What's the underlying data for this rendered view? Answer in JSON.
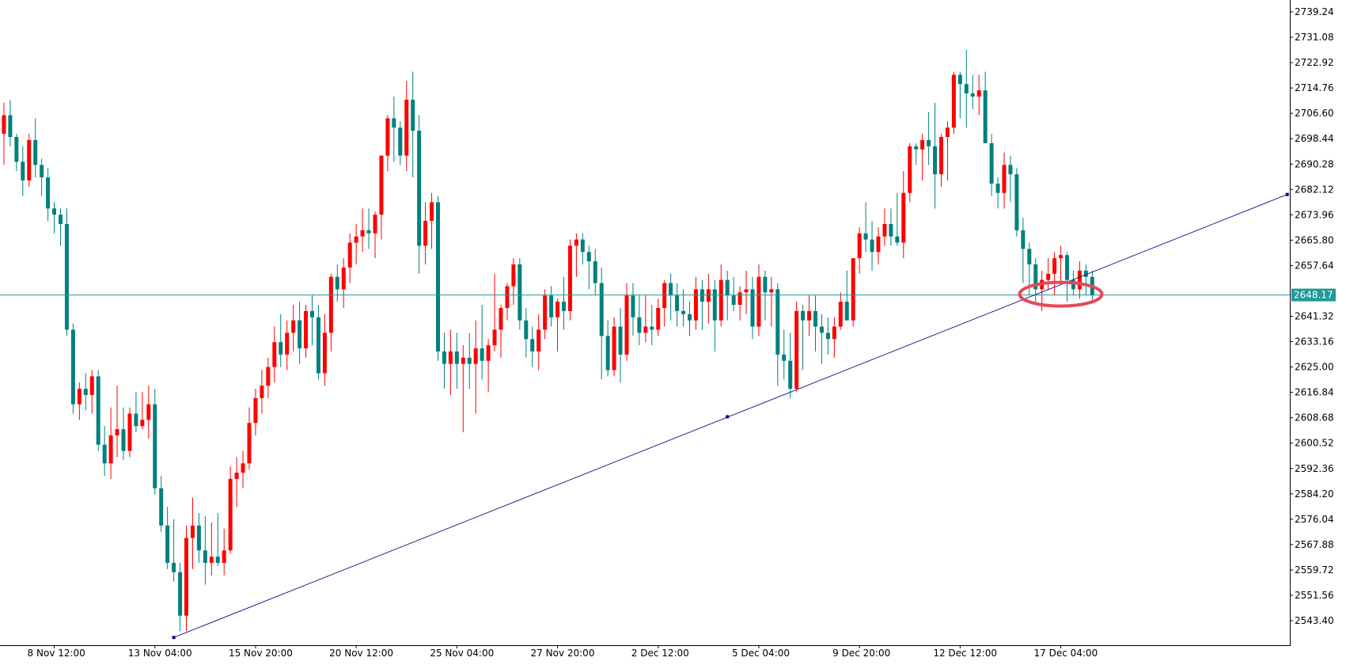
{
  "chart_data": {
    "type": "candlestick",
    "title": "",
    "xlabel": "",
    "ylabel": "",
    "ylim": [
      2535.0,
      2743.0
    ],
    "y_ticks": [
      2739.24,
      2731.08,
      2722.92,
      2714.76,
      2706.6,
      2698.44,
      2690.28,
      2682.12,
      2673.96,
      2665.8,
      2657.64,
      2641.32,
      2633.16,
      2625.0,
      2616.84,
      2608.68,
      2600.52,
      2592.36,
      2584.2,
      2576.04,
      2567.88,
      2559.72,
      2551.56,
      2543.4
    ],
    "x_labels": [
      {
        "label": "8 Nov 12:00",
        "index": 9
      },
      {
        "label": "13 Nov 04:00",
        "index": 25
      },
      {
        "label": "15 Nov 20:00",
        "index": 41
      },
      {
        "label": "20 Nov 12:00",
        "index": 57
      },
      {
        "label": "25 Nov 04:00",
        "index": 73
      },
      {
        "label": "27 Nov 20:00",
        "index": 89
      },
      {
        "label": "2 Dec 12:00",
        "index": 105
      },
      {
        "label": "5 Dec 04:00",
        "index": 121
      },
      {
        "label": "9 Dec 20:00",
        "index": 137
      },
      {
        "label": "12 Dec 12:00",
        "index": 153
      },
      {
        "label": "17 Dec 04:00",
        "index": 169
      }
    ],
    "current_price": "2648.17",
    "trendline": {
      "start": {
        "index": 28,
        "value": 2538.0
      },
      "mid": {
        "index": 116,
        "value": 2609.0
      },
      "end": {
        "index": 205,
        "value": 2680.5
      }
    },
    "candles": [
      [
        2697,
        2711,
        2683,
        2688
      ],
      [
        2700,
        2710,
        2690,
        2706
      ],
      [
        2706,
        2711,
        2696,
        2699
      ],
      [
        2699,
        2700,
        2688,
        2691
      ],
      [
        2691,
        2696,
        2680,
        2685
      ],
      [
        2685,
        2700,
        2683,
        2698
      ],
      [
        2698,
        2705,
        2686,
        2690
      ],
      [
        2690,
        2692,
        2680,
        2686
      ],
      [
        2686,
        2689,
        2672,
        2676
      ],
      [
        2676,
        2678,
        2668,
        2674
      ],
      [
        2674,
        2676,
        2664,
        2671
      ],
      [
        2671,
        2676,
        2635,
        2637
      ],
      [
        2637,
        2639,
        2610,
        2613
      ],
      [
        2613,
        2620,
        2608,
        2618
      ],
      [
        2618,
        2623,
        2611,
        2616
      ],
      [
        2616,
        2624,
        2610,
        2622
      ],
      [
        2622,
        2624,
        2598,
        2600
      ],
      [
        2600,
        2606,
        2590,
        2594
      ],
      [
        2594,
        2612,
        2589,
        2603
      ],
      [
        2603,
        2619,
        2596,
        2605
      ],
      [
        2605,
        2612,
        2595,
        2598
      ],
      [
        2598,
        2612,
        2596,
        2610
      ],
      [
        2610,
        2617,
        2604,
        2606
      ],
      [
        2606,
        2617,
        2605,
        2608
      ],
      [
        2608,
        2619,
        2602,
        2613
      ],
      [
        2613,
        2618,
        2584,
        2586
      ],
      [
        2586,
        2590,
        2572,
        2574
      ],
      [
        2574,
        2580,
        2560,
        2562
      ],
      [
        2562,
        2576,
        2556,
        2559
      ],
      [
        2559,
        2562,
        2540,
        2545
      ],
      [
        2545,
        2574,
        2540,
        2570
      ],
      [
        2570,
        2583,
        2560,
        2574
      ],
      [
        2574,
        2578,
        2562,
        2566
      ],
      [
        2566,
        2577,
        2555,
        2562
      ],
      [
        2562,
        2575,
        2558,
        2564
      ],
      [
        2564,
        2578,
        2561,
        2562
      ],
      [
        2562,
        2573,
        2558,
        2566
      ],
      [
        2566,
        2593,
        2565,
        2589
      ],
      [
        2589,
        2596,
        2580,
        2591
      ],
      [
        2591,
        2598,
        2586,
        2594
      ],
      [
        2594,
        2612,
        2592,
        2607
      ],
      [
        2607,
        2618,
        2603,
        2615
      ],
      [
        2615,
        2624,
        2610,
        2619
      ],
      [
        2619,
        2628,
        2615,
        2625
      ],
      [
        2625,
        2638,
        2620,
        2633
      ],
      [
        2633,
        2642,
        2625,
        2629
      ],
      [
        2629,
        2640,
        2624,
        2636
      ],
      [
        2636,
        2645,
        2630,
        2640
      ],
      [
        2640,
        2646,
        2626,
        2631
      ],
      [
        2631,
        2645,
        2628,
        2643
      ],
      [
        2643,
        2648,
        2632,
        2641
      ],
      [
        2641,
        2645,
        2621,
        2623
      ],
      [
        2623,
        2642,
        2619,
        2636
      ],
      [
        2636,
        2655,
        2630,
        2654
      ],
      [
        2654,
        2658,
        2646,
        2650
      ],
      [
        2650,
        2660,
        2644,
        2657
      ],
      [
        2657,
        2668,
        2652,
        2665
      ],
      [
        2665,
        2671,
        2658,
        2667
      ],
      [
        2667,
        2676,
        2662,
        2669
      ],
      [
        2669,
        2676,
        2663,
        2668
      ],
      [
        2668,
        2675,
        2660,
        2674
      ],
      [
        2674,
        2693,
        2666,
        2693
      ],
      [
        2693,
        2706,
        2688,
        2705
      ],
      [
        2705,
        2712,
        2691,
        2702
      ],
      [
        2702,
        2704,
        2690,
        2693
      ],
      [
        2693,
        2717,
        2688,
        2711
      ],
      [
        2711,
        2720,
        2686,
        2701
      ],
      [
        2701,
        2706,
        2655,
        2664
      ],
      [
        2664,
        2678,
        2658,
        2672
      ],
      [
        2672,
        2681,
        2663,
        2678
      ],
      [
        2678,
        2680,
        2627,
        2630
      ],
      [
        2630,
        2636,
        2618,
        2626
      ],
      [
        2626,
        2637,
        2616,
        2630
      ],
      [
        2630,
        2636,
        2618,
        2626
      ],
      [
        2626,
        2632,
        2604,
        2628
      ],
      [
        2628,
        2636,
        2618,
        2626
      ],
      [
        2626,
        2640,
        2610,
        2631
      ],
      [
        2631,
        2645,
        2621,
        2627
      ],
      [
        2627,
        2634,
        2617,
        2632
      ],
      [
        2632,
        2655,
        2630,
        2637
      ],
      [
        2637,
        2645,
        2628,
        2644
      ],
      [
        2644,
        2652,
        2640,
        2651
      ],
      [
        2651,
        2660,
        2645,
        2658
      ],
      [
        2658,
        2660,
        2637,
        2640
      ],
      [
        2640,
        2644,
        2628,
        2634
      ],
      [
        2634,
        2638,
        2625,
        2630
      ],
      [
        2630,
        2642,
        2624,
        2637
      ],
      [
        2637,
        2650,
        2634,
        2648
      ],
      [
        2648,
        2651,
        2638,
        2641
      ],
      [
        2641,
        2647,
        2630,
        2646
      ],
      [
        2646,
        2654,
        2637,
        2643
      ],
      [
        2643,
        2666,
        2640,
        2664
      ],
      [
        2664,
        2668,
        2654,
        2666
      ],
      [
        2666,
        2668,
        2658,
        2662
      ],
      [
        2662,
        2664,
        2650,
        2659
      ],
      [
        2659,
        2663,
        2648,
        2652
      ],
      [
        2652,
        2657,
        2621,
        2635
      ],
      [
        2635,
        2640,
        2622,
        2624
      ],
      [
        2624,
        2641,
        2622,
        2638
      ],
      [
        2638,
        2644,
        2620,
        2629
      ],
      [
        2629,
        2652,
        2627,
        2648
      ],
      [
        2648,
        2652,
        2635,
        2641
      ],
      [
        2641,
        2648,
        2632,
        2636
      ],
      [
        2636,
        2648,
        2633,
        2638
      ],
      [
        2638,
        2645,
        2632,
        2637
      ],
      [
        2637,
        2647,
        2635,
        2644
      ],
      [
        2644,
        2653,
        2638,
        2652
      ],
      [
        2652,
        2655,
        2640,
        2648
      ],
      [
        2648,
        2652,
        2638,
        2643
      ],
      [
        2643,
        2650,
        2638,
        2642
      ],
      [
        2642,
        2646,
        2635,
        2640
      ],
      [
        2640,
        2654,
        2637,
        2650
      ],
      [
        2650,
        2653,
        2637,
        2646
      ],
      [
        2646,
        2655,
        2639,
        2650
      ],
      [
        2650,
        2653,
        2630,
        2640
      ],
      [
        2640,
        2658,
        2638,
        2653
      ],
      [
        2653,
        2656,
        2640,
        2648
      ],
      [
        2648,
        2654,
        2643,
        2645
      ],
      [
        2645,
        2651,
        2640,
        2649
      ],
      [
        2649,
        2656,
        2642,
        2650
      ],
      [
        2650,
        2654,
        2634,
        2638
      ],
      [
        2638,
        2658,
        2635,
        2654
      ],
      [
        2654,
        2656,
        2640,
        2649
      ],
      [
        2649,
        2654,
        2638,
        2650
      ],
      [
        2650,
        2652,
        2619,
        2629
      ],
      [
        2629,
        2637,
        2621,
        2627
      ],
      [
        2627,
        2636,
        2615,
        2618
      ],
      [
        2618,
        2646,
        2617,
        2643
      ],
      [
        2643,
        2645,
        2624,
        2640
      ],
      [
        2640,
        2648,
        2635,
        2643
      ],
      [
        2643,
        2648,
        2630,
        2638
      ],
      [
        2638,
        2642,
        2626,
        2636
      ],
      [
        2636,
        2641,
        2629,
        2634
      ],
      [
        2634,
        2641,
        2628,
        2638
      ],
      [
        2638,
        2649,
        2637,
        2646
      ],
      [
        2646,
        2656,
        2640,
        2640
      ],
      [
        2640,
        2660,
        2638,
        2660
      ],
      [
        2660,
        2670,
        2655,
        2668
      ],
      [
        2668,
        2678,
        2662,
        2666
      ],
      [
        2666,
        2672,
        2656,
        2662
      ],
      [
        2662,
        2670,
        2658,
        2667
      ],
      [
        2667,
        2676,
        2664,
        2671
      ],
      [
        2671,
        2676,
        2664,
        2667
      ],
      [
        2667,
        2681,
        2664,
        2665
      ],
      [
        2665,
        2688,
        2660,
        2681
      ],
      [
        2681,
        2697,
        2678,
        2696
      ],
      [
        2696,
        2697,
        2690,
        2695
      ],
      [
        2695,
        2700,
        2685,
        2698
      ],
      [
        2698,
        2707,
        2690,
        2696
      ],
      [
        2696,
        2710,
        2676,
        2687
      ],
      [
        2687,
        2700,
        2683,
        2699
      ],
      [
        2699,
        2704,
        2685,
        2702
      ],
      [
        2702,
        2720,
        2700,
        2719
      ],
      [
        2719,
        2720,
        2705,
        2716
      ],
      [
        2716,
        2727,
        2702,
        2713
      ],
      [
        2713,
        2719,
        2708,
        2712
      ],
      [
        2712,
        2719,
        2706,
        2714
      ],
      [
        2714,
        2720,
        2698,
        2697
      ],
      [
        2697,
        2700,
        2680,
        2684
      ],
      [
        2684,
        2686,
        2676,
        2681
      ],
      [
        2681,
        2694,
        2676,
        2690
      ],
      [
        2690,
        2693,
        2678,
        2687
      ],
      [
        2687,
        2689,
        2667,
        2669
      ],
      [
        2669,
        2673,
        2652,
        2663
      ],
      [
        2663,
        2665,
        2648,
        2658
      ],
      [
        2658,
        2660,
        2645,
        2650
      ],
      [
        2650,
        2656,
        2643,
        2653
      ],
      [
        2653,
        2660,
        2650,
        2655
      ],
      [
        2655,
        2662,
        2648,
        2660
      ],
      [
        2660,
        2664,
        2652,
        2661
      ],
      [
        2661,
        2662,
        2646,
        2653
      ],
      [
        2653,
        2656,
        2648,
        2650
      ],
      [
        2650,
        2659,
        2647,
        2656
      ],
      [
        2656,
        2658,
        2648,
        2654
      ],
      [
        2654,
        2656,
        2646,
        2648
      ]
    ]
  }
}
